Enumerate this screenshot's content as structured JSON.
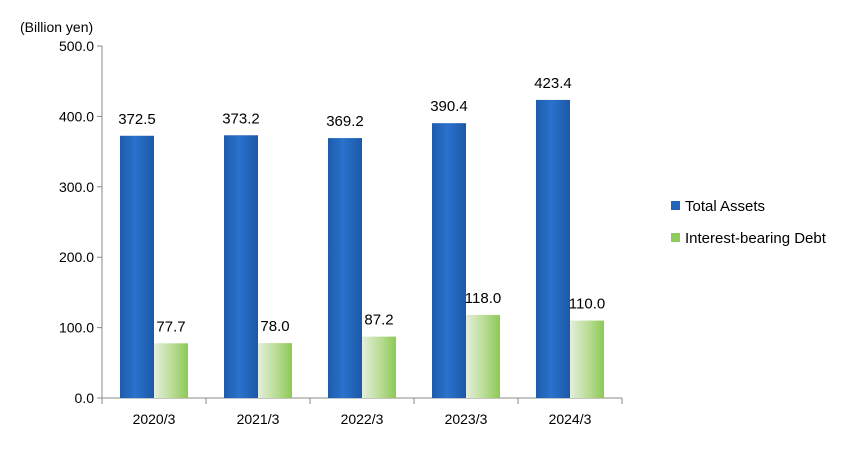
{
  "chart_data": {
    "type": "bar",
    "unit_label": "(Billion yen)",
    "categories": [
      "2020/3",
      "2021/3",
      "2022/3",
      "2023/3",
      "2024/3"
    ],
    "series": [
      {
        "name": "Total Assets",
        "values": [
          372.5,
          373.2,
          369.2,
          390.4,
          423.4
        ],
        "labels": [
          "372.5",
          "373.2",
          "369.2",
          "390.4",
          "423.4"
        ],
        "color": "#2266BB"
      },
      {
        "name": "Interest-bearing Debt",
        "values": [
          77.7,
          78.0,
          87.2,
          118.0,
          110.0
        ],
        "labels": [
          "77.7",
          "78.0",
          "87.2",
          "118.0",
          "110.0"
        ],
        "color": "#8FCB5A"
      }
    ],
    "ylim": [
      0,
      500
    ],
    "yticks": [
      "0.0",
      "100.0",
      "200.0",
      "300.0",
      "400.0",
      "500.0"
    ],
    "grid": false,
    "legend_position": "right"
  }
}
